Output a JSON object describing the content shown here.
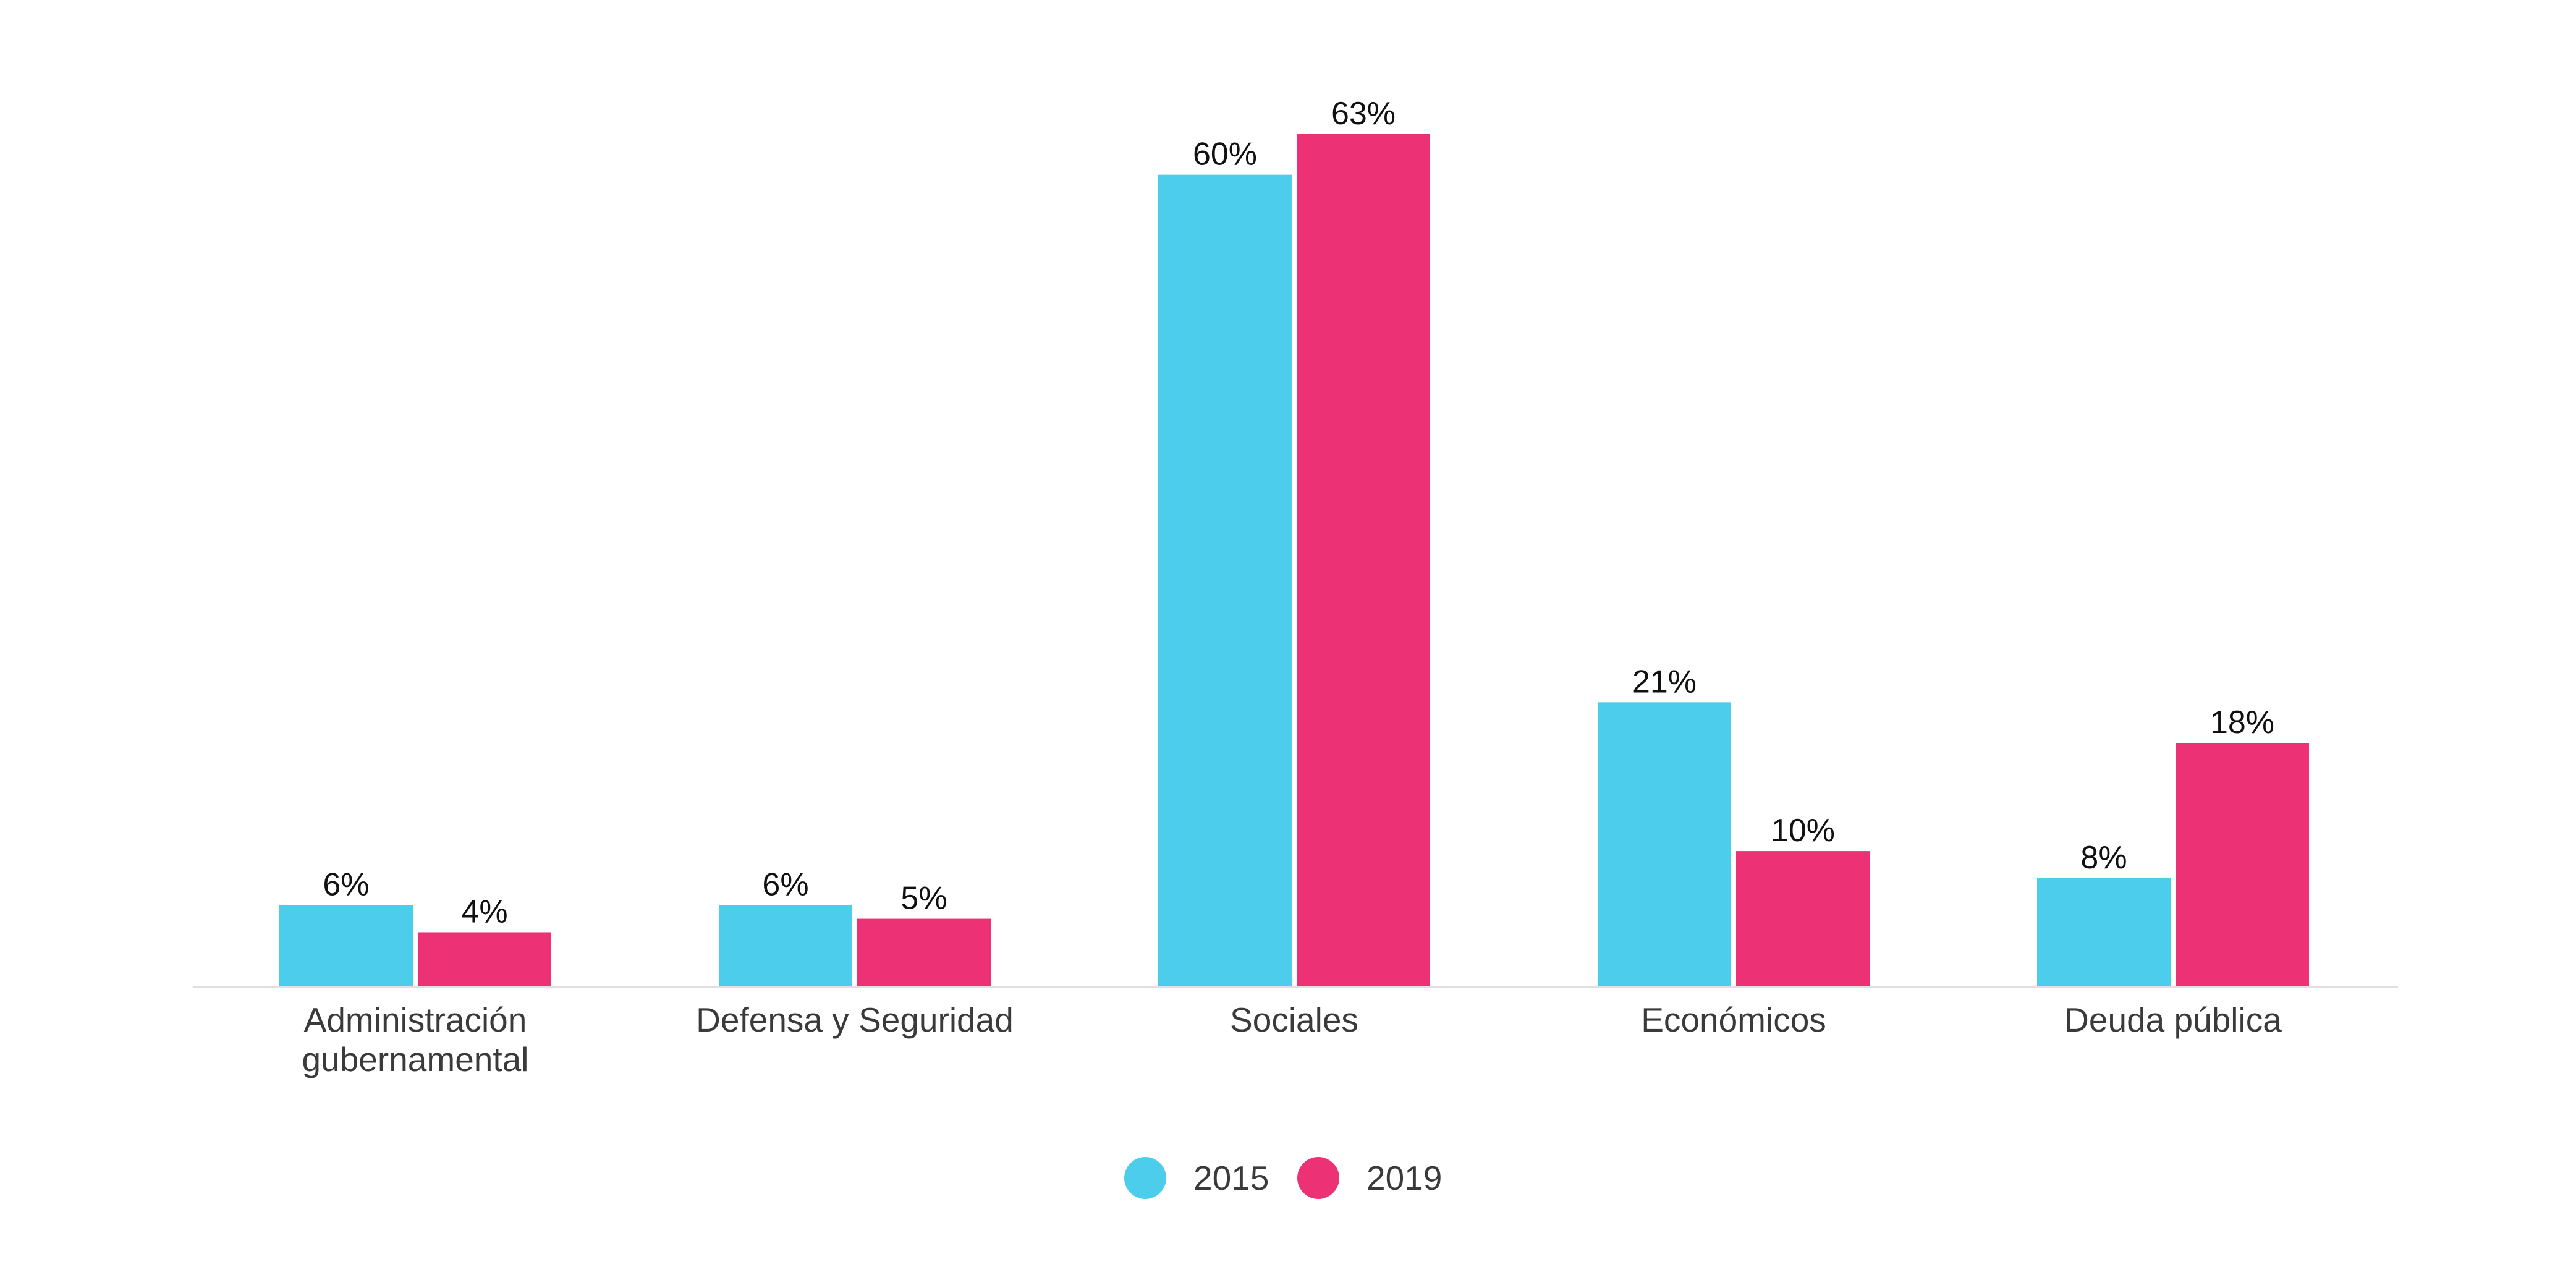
{
  "chart_data": {
    "type": "bar",
    "categories": [
      [
        "Administración",
        "gubernamental"
      ],
      [
        "Defensa y Seguridad"
      ],
      [
        "Sociales"
      ],
      [
        "Económicos"
      ],
      [
        "Deuda pública"
      ]
    ],
    "series": [
      {
        "name": "2015",
        "color": "#4ccdec",
        "values": [
          6,
          6,
          60,
          21,
          8
        ],
        "labels": [
          "6%",
          "6%",
          "60%",
          "21%",
          "8%"
        ]
      },
      {
        "name": "2019",
        "color": "#ec3174",
        "values": [
          4,
          5,
          63,
          10,
          18
        ],
        "labels": [
          "4%",
          "5%",
          "63%",
          "10%",
          "18%"
        ]
      }
    ],
    "value_unit": "%",
    "ylim": [
      0,
      63
    ],
    "grid": false,
    "legend_position": "bottom-center",
    "baseline_color": "#e0e0e0"
  }
}
